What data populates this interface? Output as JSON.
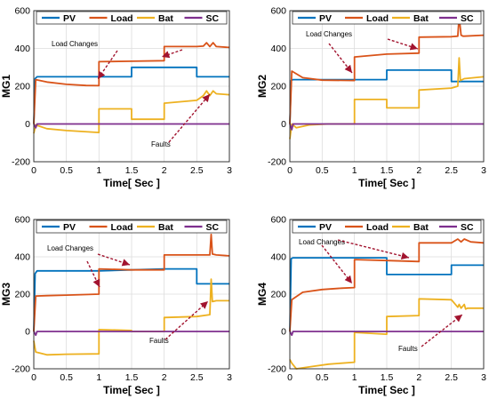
{
  "colors": {
    "PV": "#0072BD",
    "Load": "#D95319",
    "Bat": "#EDB120",
    "SC": "#7E2F8E",
    "annotation": "#A2142F"
  },
  "chart_data": [
    {
      "type": "line",
      "ylabel": "MG1",
      "xlabel": "Time[ Sec ]",
      "xlim": [
        0,
        3
      ],
      "ylim": [
        -200,
        600
      ],
      "xticks": [
        "0",
        "0.5",
        "1",
        "1.5",
        "2",
        "2.5",
        "3"
      ],
      "yticks": [
        "-200",
        "0",
        "200",
        "400",
        "600"
      ],
      "grid": true,
      "legend": "top",
      "series": [
        {
          "name": "PV",
          "x": [
            0,
            0.02,
            0.05,
            1.0,
            1.5,
            1.5,
            2.0,
            2.5,
            2.5,
            3.0
          ],
          "y": [
            0,
            240,
            250,
            250,
            250,
            300,
            300,
            300,
            250,
            250
          ]
        },
        {
          "name": "Load",
          "x": [
            0,
            0.03,
            0.2,
            0.5,
            0.8,
            1.0,
            1.0,
            1.5,
            2.0,
            2.0,
            2.5,
            2.6,
            2.65,
            2.7,
            2.75,
            2.8,
            3.0
          ],
          "y": [
            0,
            235,
            222,
            210,
            204,
            203,
            330,
            332,
            335,
            410,
            410,
            412,
            430,
            410,
            430,
            410,
            405
          ]
        },
        {
          "name": "Bat",
          "x": [
            0,
            0.03,
            0.2,
            0.5,
            1.0,
            1.0,
            1.5,
            1.5,
            2.0,
            2.0,
            2.5,
            2.6,
            2.65,
            2.7,
            2.75,
            2.8,
            3.0
          ],
          "y": [
            -50,
            -5,
            -25,
            -35,
            -45,
            80,
            80,
            25,
            25,
            110,
            125,
            150,
            175,
            150,
            175,
            160,
            155
          ]
        },
        {
          "name": "SC",
          "x": [
            0,
            0.03,
            0.05,
            1.0,
            2.0,
            3.0
          ],
          "y": [
            0,
            -20,
            0,
            0,
            0,
            0
          ]
        }
      ],
      "annotations": [
        "Load Changes",
        "Faults"
      ]
    },
    {
      "type": "line",
      "ylabel": "MG2",
      "xlabel": "Time[ Sec ]",
      "xlim": [
        0,
        3
      ],
      "ylim": [
        -200,
        600
      ],
      "xticks": [
        "0",
        "0.5",
        "1",
        "1.5",
        "2",
        "2.5",
        "3"
      ],
      "yticks": [
        "-200",
        "0",
        "200",
        "400",
        "600"
      ],
      "grid": true,
      "legend": "top",
      "series": [
        {
          "name": "PV",
          "x": [
            0,
            0.02,
            0.05,
            1.0,
            1.5,
            1.5,
            2.0,
            2.5,
            2.5,
            3.0
          ],
          "y": [
            0,
            230,
            235,
            235,
            235,
            285,
            285,
            285,
            225,
            225
          ]
        },
        {
          "name": "Load",
          "x": [
            0,
            0.03,
            0.2,
            0.5,
            1.0,
            1.0,
            1.5,
            2.0,
            2.0,
            2.5,
            2.6,
            2.62,
            2.65,
            2.68,
            2.7,
            3.0
          ],
          "y": [
            0,
            280,
            245,
            232,
            230,
            355,
            370,
            375,
            460,
            462,
            465,
            570,
            470,
            465,
            465,
            470
          ]
        },
        {
          "name": "Bat",
          "x": [
            0,
            0.03,
            0.1,
            0.3,
            0.6,
            1.0,
            1.0,
            1.5,
            1.5,
            2.0,
            2.0,
            2.5,
            2.6,
            2.62,
            2.64,
            2.7,
            3.0
          ],
          "y": [
            -80,
            0,
            -20,
            -5,
            0,
            0,
            130,
            130,
            85,
            85,
            180,
            190,
            200,
            350,
            230,
            240,
            250
          ]
        },
        {
          "name": "SC",
          "x": [
            0,
            0.03,
            0.05,
            1.0,
            2.0,
            3.0
          ],
          "y": [
            0,
            -30,
            0,
            0,
            0,
            0
          ]
        }
      ],
      "annotations": [
        "Load Changes"
      ]
    },
    {
      "type": "line",
      "ylabel": "MG3",
      "xlabel": "Time[ Sec ]",
      "xlim": [
        0,
        3
      ],
      "ylim": [
        -200,
        600
      ],
      "xticks": [
        "0",
        "0.5",
        "1",
        "1.5",
        "2",
        "2.5",
        "3"
      ],
      "yticks": [
        "-200",
        "0",
        "200",
        "400",
        "600"
      ],
      "grid": true,
      "legend": "top",
      "series": [
        {
          "name": "PV",
          "x": [
            0,
            0.02,
            0.05,
            1.0,
            1.5,
            2.0,
            2.5,
            2.5,
            3.0
          ],
          "y": [
            0,
            310,
            325,
            325,
            330,
            335,
            335,
            255,
            255
          ]
        },
        {
          "name": "Load",
          "x": [
            0,
            0.03,
            0.2,
            0.5,
            1.0,
            1.0,
            1.5,
            2.0,
            2.0,
            2.5,
            2.7,
            2.72,
            2.74,
            2.8,
            3.0
          ],
          "y": [
            0,
            190,
            192,
            195,
            200,
            335,
            330,
            330,
            410,
            410,
            410,
            520,
            415,
            410,
            405
          ]
        },
        {
          "name": "Bat",
          "x": [
            0,
            0.03,
            0.2,
            0.5,
            1.0,
            1.0,
            1.5,
            1.5,
            2.0,
            2.0,
            2.5,
            2.7,
            2.72,
            2.74,
            2.8,
            3.0
          ],
          "y": [
            -50,
            -110,
            -125,
            -122,
            -120,
            10,
            5,
            0,
            0,
            75,
            80,
            90,
            280,
            160,
            165,
            165
          ]
        },
        {
          "name": "SC",
          "x": [
            0,
            0.03,
            0.05,
            1.0,
            2.0,
            3.0
          ],
          "y": [
            0,
            -20,
            0,
            0,
            0,
            0
          ]
        }
      ],
      "annotations": [
        "Load Changes",
        "Faults"
      ]
    },
    {
      "type": "line",
      "ylabel": "MG4",
      "xlabel": "Time[ Sec ]",
      "xlim": [
        0,
        3
      ],
      "ylim": [
        -200,
        600
      ],
      "xticks": [
        "0",
        "0.5",
        "1",
        "1.5",
        "2",
        "2.5",
        "3"
      ],
      "yticks": [
        "-200",
        "0",
        "200",
        "400",
        "600"
      ],
      "grid": true,
      "legend": "top",
      "series": [
        {
          "name": "PV",
          "x": [
            0,
            0.02,
            0.05,
            1.0,
            1.5,
            1.5,
            2.0,
            2.5,
            2.5,
            3.0
          ],
          "y": [
            0,
            390,
            395,
            395,
            395,
            305,
            305,
            305,
            355,
            355
          ]
        },
        {
          "name": "Load",
          "x": [
            0,
            0.03,
            0.2,
            0.5,
            0.8,
            1.0,
            1.0,
            1.5,
            2.0,
            2.0,
            2.5,
            2.6,
            2.65,
            2.7,
            2.8,
            3.0
          ],
          "y": [
            0,
            170,
            210,
            225,
            232,
            235,
            385,
            380,
            375,
            475,
            475,
            495,
            480,
            495,
            480,
            475
          ]
        },
        {
          "name": "Bat",
          "x": [
            0,
            0.03,
            0.1,
            0.3,
            0.6,
            1.0,
            1.0,
            1.5,
            1.5,
            2.0,
            2.0,
            2.5,
            2.6,
            2.62,
            2.65,
            2.7,
            2.72,
            2.75,
            3.0
          ],
          "y": [
            -150,
            -170,
            -200,
            -190,
            -175,
            -165,
            -5,
            -15,
            80,
            85,
            175,
            170,
            130,
            145,
            125,
            145,
            120,
            125,
            125
          ]
        },
        {
          "name": "SC",
          "x": [
            0,
            0.03,
            0.05,
            1.0,
            2.0,
            3.0
          ],
          "y": [
            0,
            -20,
            0,
            0,
            0,
            0
          ]
        }
      ],
      "annotations": [
        "Load Changes",
        "Faults"
      ]
    }
  ]
}
